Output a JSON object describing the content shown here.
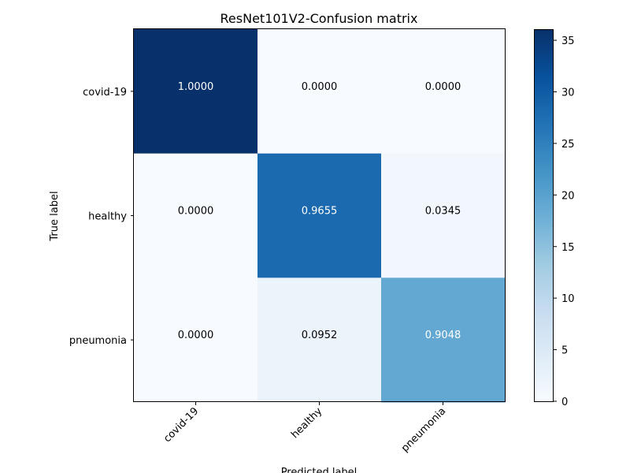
{
  "chart_data": {
    "type": "heatmap",
    "title": "ResNet101V2-Confusion matrix",
    "xlabel": "Predicted label",
    "ylabel": "True label",
    "x_categories": [
      "covid-19",
      "healthy",
      "pneumonia"
    ],
    "y_categories": [
      "covid-19",
      "healthy",
      "pneumonia"
    ],
    "cell_labels": [
      [
        "1.0000",
        "0.0000",
        "0.0000"
      ],
      [
        "0.0000",
        "0.9655",
        "0.0345"
      ],
      [
        "0.0000",
        "0.0952",
        "0.9048"
      ]
    ],
    "counts": [
      [
        36,
        0,
        0
      ],
      [
        0,
        28,
        1
      ],
      [
        0,
        2,
        19
      ]
    ],
    "colorbar": {
      "colormap": "Blues",
      "range": [
        0,
        36
      ],
      "ticks": [
        0,
        5,
        10,
        15,
        20,
        25,
        30,
        35
      ]
    },
    "colors": {
      "low": "#f7fbff",
      "high": "#08306b",
      "text_dark": "#000000",
      "text_light": "#ffffff"
    }
  }
}
